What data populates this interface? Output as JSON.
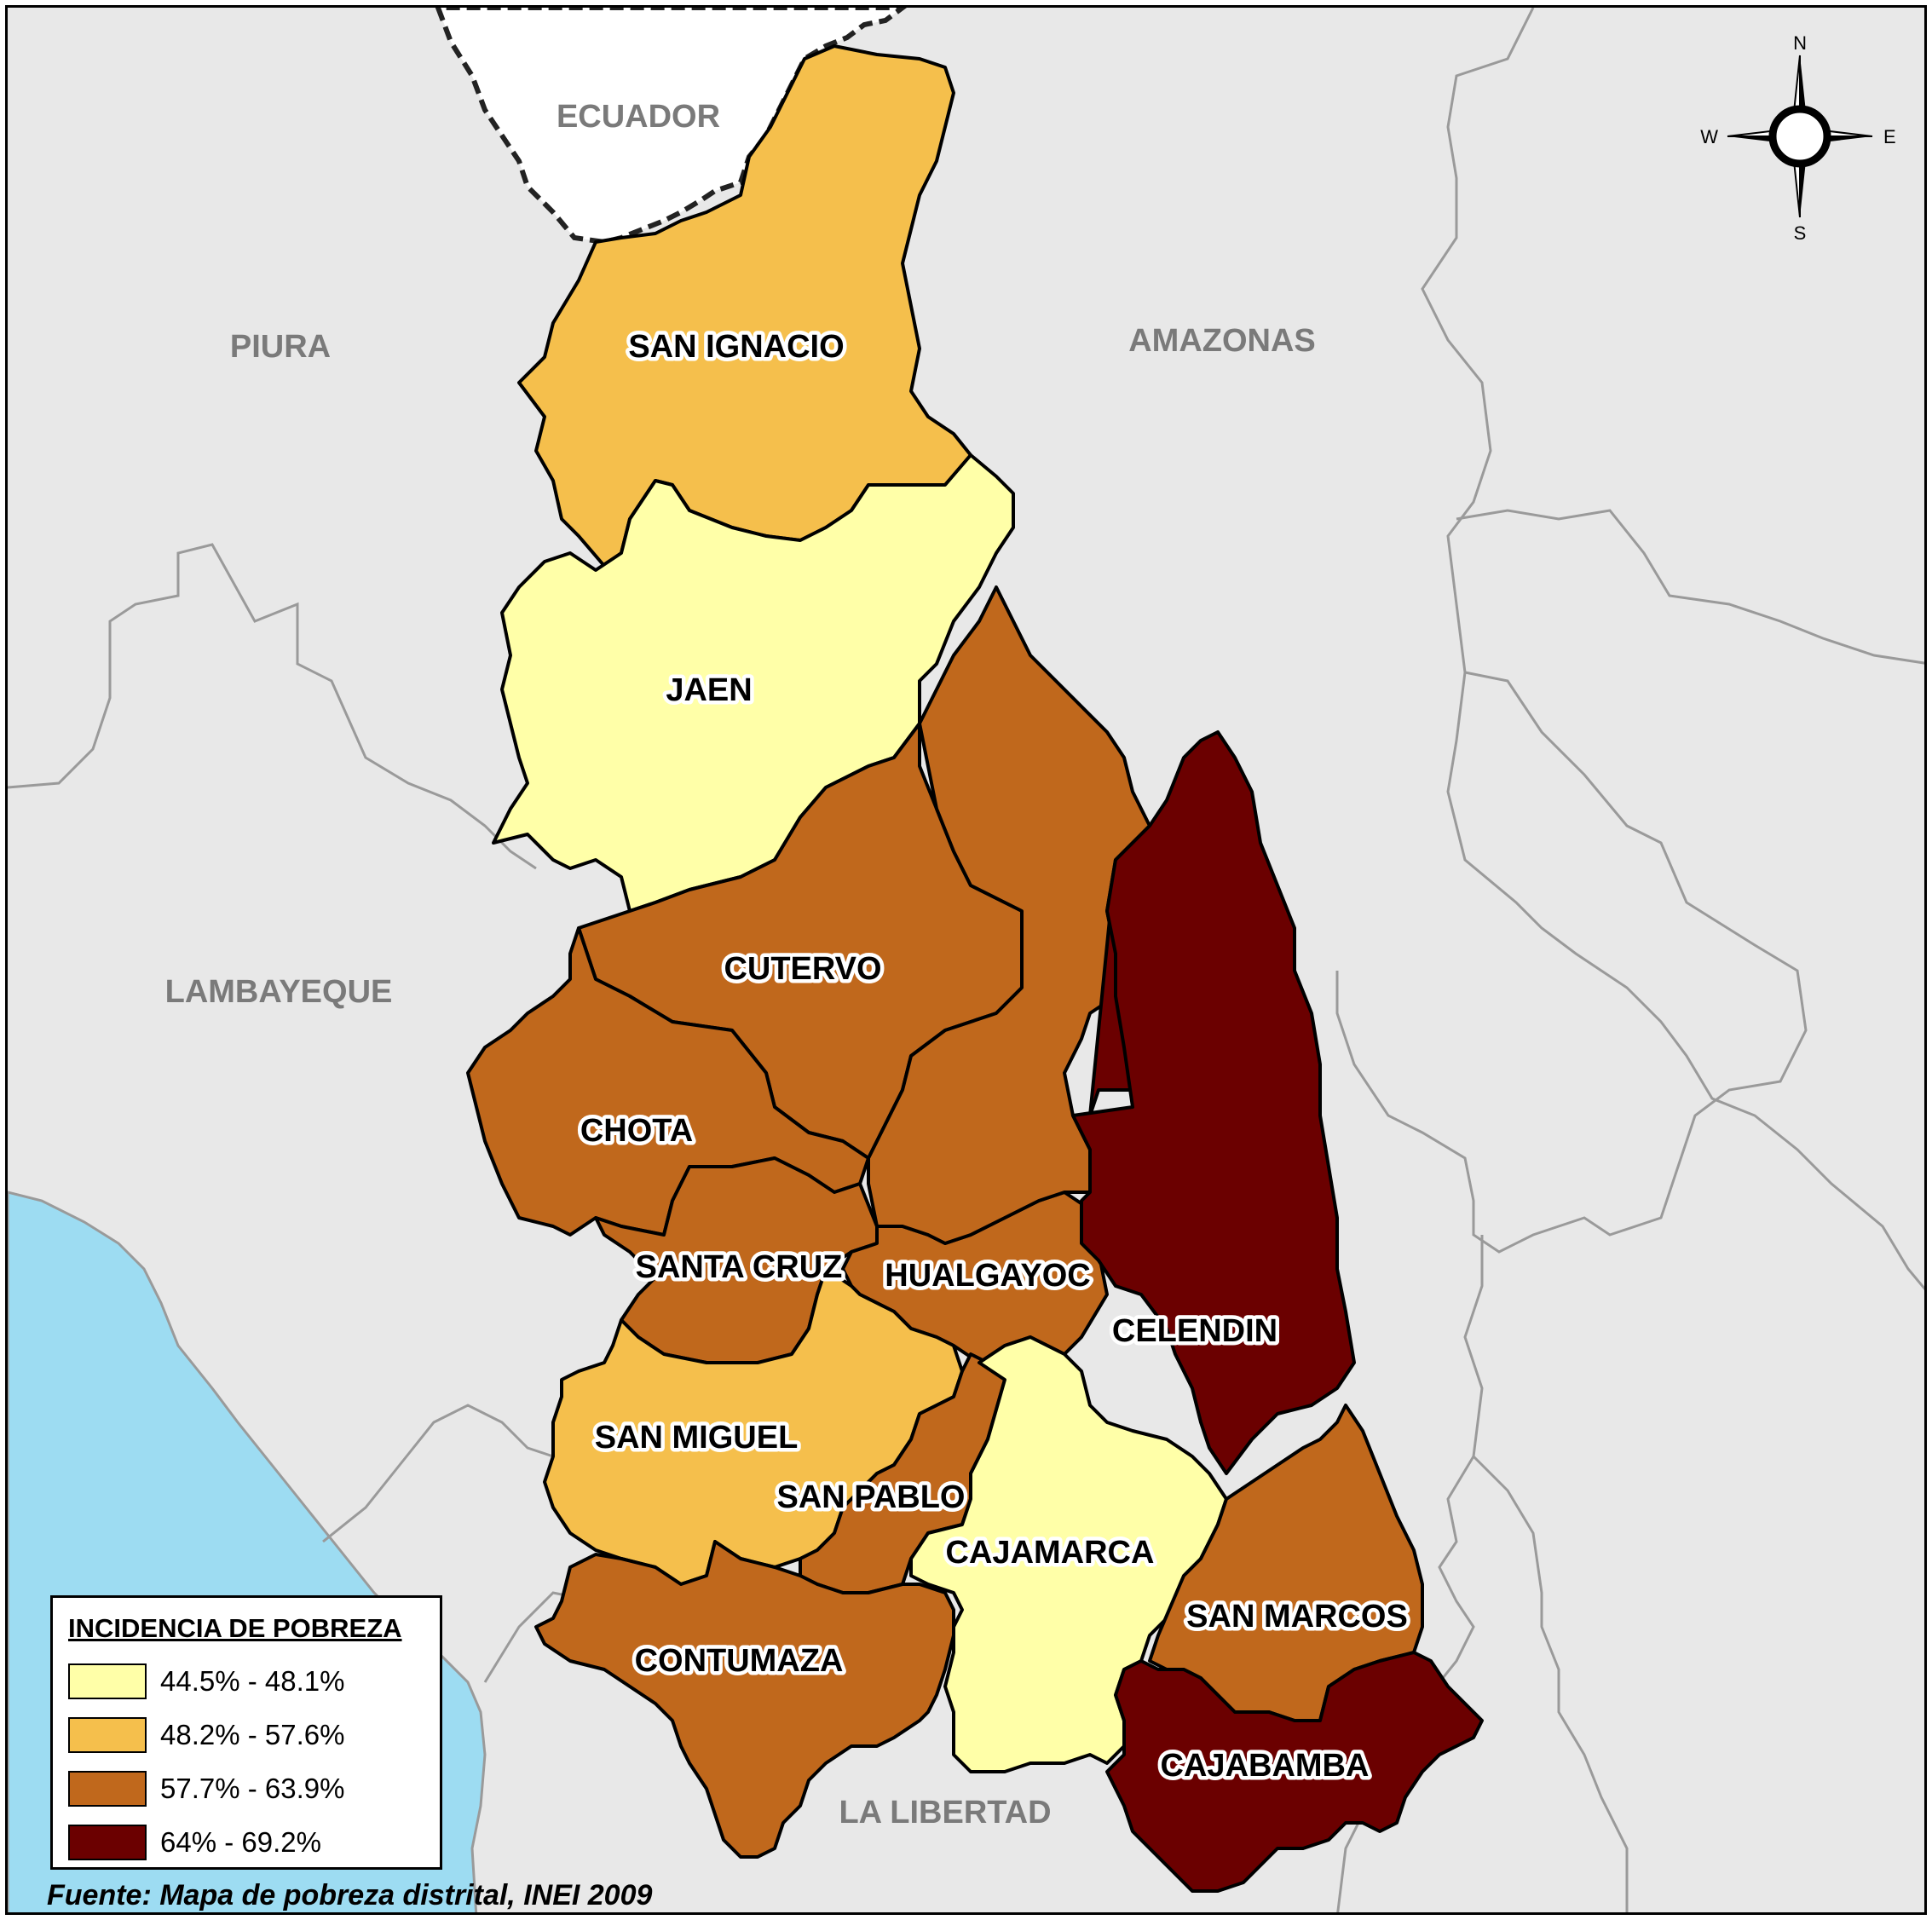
{
  "map": {
    "neighbors": {
      "ecuador": "ECUADOR",
      "piura": "PIURA",
      "amazonas": "AMAZONAS",
      "lambayeque": "LAMBAYEQUE",
      "la_libertad": "LA LIBERTAD"
    },
    "provinces": {
      "san_ignacio": "SAN IGNACIO",
      "jaen": "JAEN",
      "cutervo": "CUTERVO",
      "chota": "CHOTA",
      "santa_cruz": "SANTA CRUZ",
      "hualgayoc": "HUALGAYOC",
      "celendin": "CELENDIN",
      "san_miguel": "SAN MIGUEL",
      "san_pablo": "SAN PABLO",
      "cajamarca": "CAJAMARCA",
      "san_marcos": "SAN MARCOS",
      "contumaza": "CONTUMAZA",
      "cajabamba": "CAJABAMBA"
    },
    "colors": {
      "class1": "#FFFFA8",
      "class2": "#F5BF4C",
      "class3": "#C0681C",
      "class4": "#6B0000",
      "ocean": "#9DDCF2",
      "background": "#E8E8E8",
      "ecuador": "#FFFFFF"
    },
    "compass": {
      "n": "N",
      "s": "S",
      "e": "E",
      "w": "W"
    }
  },
  "legend": {
    "title": "INCIDENCIA DE POBREZA",
    "items": [
      {
        "label": "44.5% - 48.1%",
        "color": "#FFFFA8"
      },
      {
        "label": "48.2% - 57.6%",
        "color": "#F5BF4C"
      },
      {
        "label": "57.7% - 63.9%",
        "color": "#C0681C"
      },
      {
        "label": "64% - 69.2%",
        "color": "#6B0000"
      }
    ]
  },
  "source": "Fuente: Mapa de pobreza distrital, INEI 2009"
}
